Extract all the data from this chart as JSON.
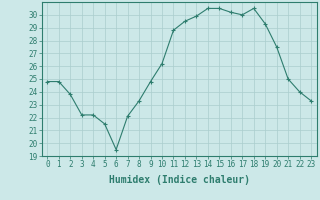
{
  "xlabel": "Humidex (Indice chaleur)",
  "x": [
    0,
    1,
    2,
    3,
    4,
    5,
    6,
    7,
    8,
    9,
    10,
    11,
    12,
    13,
    14,
    15,
    16,
    17,
    18,
    19,
    20,
    21,
    22,
    23
  ],
  "y": [
    24.8,
    24.8,
    23.8,
    22.2,
    22.2,
    21.5,
    19.5,
    22.1,
    23.3,
    24.8,
    26.2,
    28.8,
    29.5,
    29.9,
    30.5,
    30.5,
    30.2,
    30.0,
    30.5,
    29.3,
    27.5,
    25.0,
    24.0,
    23.3
  ],
  "line_color": "#2e7d6e",
  "marker": "+",
  "marker_size": 3,
  "bg_color": "#cce8e8",
  "grid_color": "#aacece",
  "ylim": [
    19,
    31
  ],
  "xlim": [
    -0.5,
    23.5
  ],
  "yticks": [
    19,
    20,
    21,
    22,
    23,
    24,
    25,
    26,
    27,
    28,
    29,
    30
  ],
  "xticks": [
    0,
    1,
    2,
    3,
    4,
    5,
    6,
    7,
    8,
    9,
    10,
    11,
    12,
    13,
    14,
    15,
    16,
    17,
    18,
    19,
    20,
    21,
    22,
    23
  ],
  "tick_fontsize": 5.5,
  "xlabel_fontsize": 7,
  "label_color": "#2e7d6e"
}
